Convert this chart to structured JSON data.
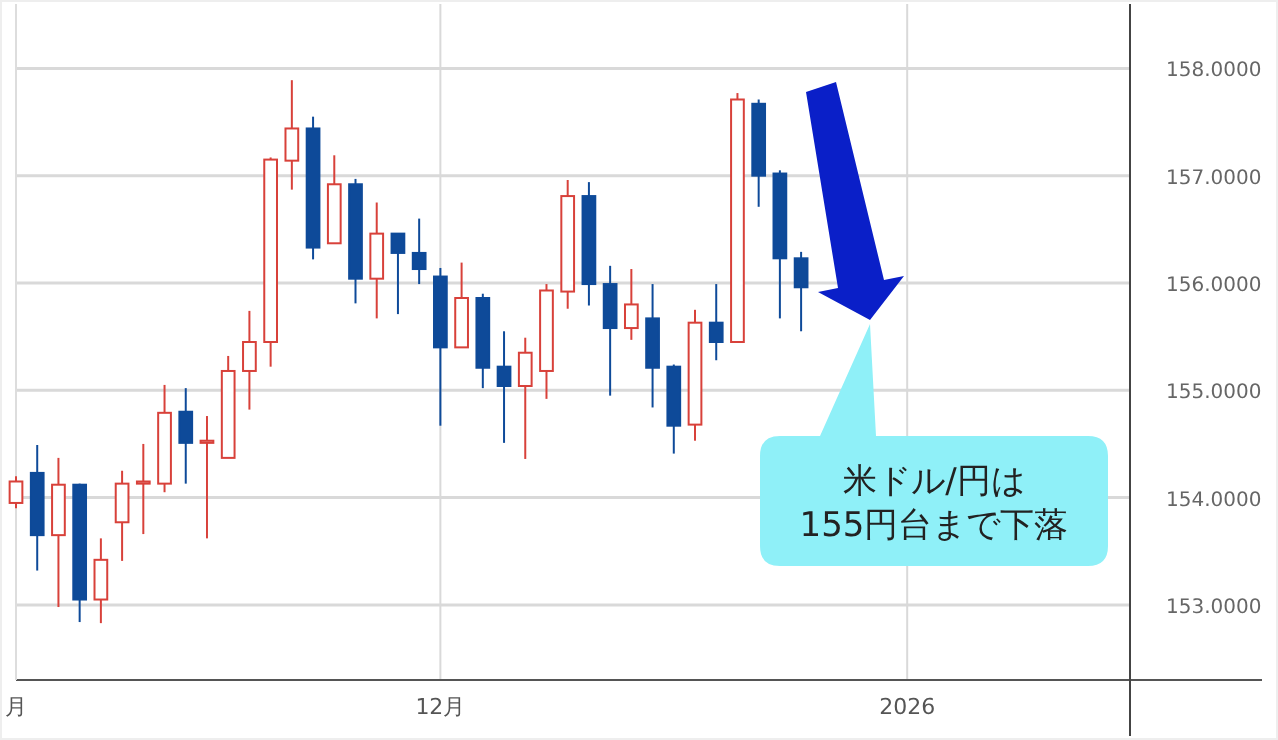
{
  "chart_data": {
    "type": "candlestick",
    "categories": [
      "月",
      null,
      null,
      null,
      null,
      null,
      null,
      null,
      null,
      null,
      null,
      null,
      null,
      null,
      null,
      null,
      null,
      null,
      null,
      null,
      "12月",
      null,
      null,
      null,
      null,
      null,
      null,
      null,
      null,
      null,
      null,
      null,
      null,
      null,
      null,
      null,
      null,
      null,
      null,
      null,
      null,
      null,
      "2026",
      null,
      null,
      null,
      null,
      null,
      null,
      null,
      null,
      null,
      null
    ],
    "ohlc": [
      [
        153.95,
        154.2,
        153.9,
        154.15
      ],
      [
        154.23,
        154.49,
        153.32,
        153.65
      ],
      [
        153.65,
        154.37,
        152.98,
        154.12
      ],
      [
        154.12,
        154.13,
        152.84,
        153.05
      ],
      [
        153.05,
        153.62,
        152.83,
        153.42
      ],
      [
        153.77,
        154.25,
        153.41,
        154.13
      ],
      [
        154.13,
        154.5,
        153.66,
        154.15
      ],
      [
        154.13,
        155.05,
        154.05,
        154.79
      ],
      [
        154.8,
        155.02,
        154.13,
        154.51
      ],
      [
        154.51,
        154.76,
        153.62,
        154.53
      ],
      [
        154.37,
        155.32,
        154.37,
        155.18
      ],
      [
        155.18,
        155.74,
        154.82,
        155.45
      ],
      [
        155.45,
        157.17,
        155.22,
        157.15
      ],
      [
        157.14,
        157.89,
        156.87,
        157.44
      ],
      [
        157.44,
        157.55,
        156.22,
        156.33
      ],
      [
        156.37,
        157.19,
        156.37,
        156.92
      ],
      [
        156.92,
        156.97,
        155.81,
        156.04
      ],
      [
        156.04,
        156.75,
        155.67,
        156.46
      ],
      [
        156.46,
        156.46,
        155.71,
        156.28
      ],
      [
        156.28,
        156.6,
        155.99,
        156.13
      ],
      [
        156.06,
        156.14,
        154.67,
        155.4
      ],
      [
        155.4,
        156.19,
        155.4,
        155.86
      ],
      [
        155.86,
        155.9,
        155.02,
        155.21
      ],
      [
        155.22,
        155.55,
        154.51,
        155.04
      ],
      [
        155.04,
        155.49,
        154.36,
        155.35
      ],
      [
        155.18,
        155.99,
        154.92,
        155.93
      ],
      [
        155.92,
        156.96,
        155.76,
        156.81
      ],
      [
        156.81,
        156.94,
        155.79,
        155.99
      ],
      [
        155.99,
        156.16,
        154.95,
        155.58
      ],
      [
        155.58,
        156.13,
        155.47,
        155.8
      ],
      [
        155.67,
        155.99,
        154.84,
        155.21
      ],
      [
        155.22,
        155.24,
        154.41,
        154.67
      ],
      [
        154.68,
        155.75,
        154.53,
        155.63
      ],
      [
        155.63,
        155.99,
        155.28,
        155.45
      ],
      [
        155.45,
        157.77,
        155.45,
        157.71
      ],
      [
        157.67,
        157.71,
        156.71,
        157.0
      ],
      [
        157.02,
        157.05,
        155.67,
        156.23
      ],
      [
        156.23,
        156.29,
        155.55,
        155.96
      ],
      null,
      null,
      null,
      null,
      null,
      null,
      null,
      null,
      null,
      null,
      null,
      null,
      null,
      null,
      null
    ],
    "colors": [
      "#d8413a",
      "#0e4a99",
      "#d8413a",
      "#0e4a99",
      "#d8413a",
      "#d8413a",
      "#d8413a",
      "#d8413a",
      "#0e4a99",
      "#d8413a",
      "#d8413a",
      "#d8413a",
      "#d8413a",
      "#d8413a",
      "#0e4a99",
      "#d8413a",
      "#0e4a99",
      "#d8413a",
      "#0e4a99",
      "#0e4a99",
      "#0e4a99",
      "#d8413a",
      "#0e4a99",
      "#0e4a99",
      "#d8413a",
      "#d8413a",
      "#d8413a",
      "#0e4a99",
      "#0e4a99",
      "#d8413a",
      "#0e4a99",
      "#0e4a99",
      "#d8413a",
      "#0e4a99",
      "#d8413a",
      "#0e4a99",
      "#0e4a99",
      "#0e4a99",
      null,
      null,
      null,
      null,
      null,
      null,
      null,
      null,
      null,
      null,
      null,
      null,
      null,
      null,
      null
    ],
    "ylim": [
      152.3,
      158.6
    ],
    "yticks": [
      {
        "value": 153,
        "label": "153.0000"
      },
      {
        "value": 154,
        "label": "154.0000"
      },
      {
        "value": 155,
        "label": "155.0000"
      },
      {
        "value": 156,
        "label": "156.0000"
      },
      {
        "value": 157,
        "label": "157.0000"
      },
      {
        "value": 158,
        "label": "158.0000"
      }
    ],
    "grid": true,
    "annotations": [
      "米ドル/円は\n155円台まで下落"
    ]
  }
}
